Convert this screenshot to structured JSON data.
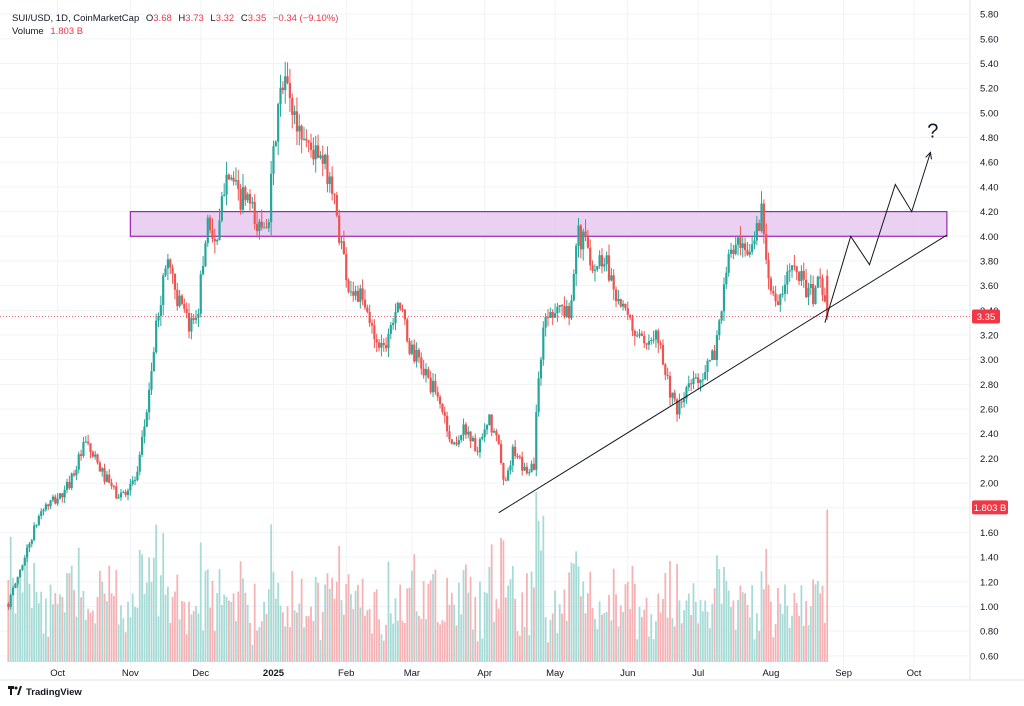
{
  "legend": {
    "symbol": "SUI/USD, 1D, CoinMarketCap",
    "o_label": "O",
    "o_value": "3.68",
    "h_label": "H",
    "h_value": "3.73",
    "l_label": "L",
    "l_value": "3.32",
    "c_label": "C",
    "c_value": "3.35",
    "change": "−0.34 (−9.10%)",
    "volume_label": "Volume",
    "volume_value": "1.803 B"
  },
  "brand": {
    "name": "TradingView",
    "logo_icon": "tradingview-logo-icon"
  },
  "colors": {
    "up": "#26a69a",
    "down": "#ef5350",
    "volume_up": "#a7dbd6",
    "volume_down": "#f6b3b6",
    "zone_fill": "#e6c8ef",
    "zone_stroke": "#9c27b0",
    "price_tag": "#f23645"
  },
  "chart_data": {
    "type": "candlestick",
    "symbol": "SUI/USD",
    "interval": "1D",
    "source": "CoinMarketCap",
    "y_ticks": [
      "5.80",
      "5.60",
      "5.40",
      "5.20",
      "5.00",
      "4.80",
      "4.60",
      "4.40",
      "4.20",
      "4.00",
      "3.80",
      "3.60",
      "3.40",
      "3.20",
      "3.00",
      "2.80",
      "2.60",
      "2.40",
      "2.20",
      "2.00",
      "1.80",
      "1.60",
      "1.40",
      "1.20",
      "1.00",
      "0.80",
      "0.60"
    ],
    "ylim": [
      0.55,
      5.85
    ],
    "x_ticks": [
      {
        "label": "Oct",
        "date": "2024-10-01",
        "bold": false
      },
      {
        "label": "Nov",
        "date": "2024-11-01",
        "bold": false
      },
      {
        "label": "Dec",
        "date": "2024-12-01",
        "bold": false
      },
      {
        "label": "2025",
        "date": "2025-01-01",
        "bold": true
      },
      {
        "label": "Feb",
        "date": "2025-02-01",
        "bold": false
      },
      {
        "label": "Mar",
        "date": "2025-03-01",
        "bold": false
      },
      {
        "label": "Apr",
        "date": "2025-04-01",
        "bold": false
      },
      {
        "label": "May",
        "date": "2025-05-01",
        "bold": false
      },
      {
        "label": "Jun",
        "date": "2025-06-01",
        "bold": false
      },
      {
        "label": "Jul",
        "date": "2025-07-01",
        "bold": false
      },
      {
        "label": "Aug",
        "date": "2025-08-01",
        "bold": false
      },
      {
        "label": "Sep",
        "date": "2025-09-01",
        "bold": false
      },
      {
        "label": "Oct",
        "date": "2025-10-01",
        "bold": false
      }
    ],
    "xlim": [
      "2024-09-09",
      "2025-10-24"
    ],
    "last_price": {
      "value": 3.35,
      "label": "3.35"
    },
    "last_volume": {
      "value": 1.803,
      "label": "1.803 B"
    },
    "anchors": [
      [
        "2024-09-10",
        1.02
      ],
      [
        "2024-09-16",
        1.35
      ],
      [
        "2024-09-24",
        1.78
      ],
      [
        "2024-10-04",
        1.92
      ],
      [
        "2024-10-13",
        2.32
      ],
      [
        "2024-10-20",
        2.08
      ],
      [
        "2024-10-27",
        1.88
      ],
      [
        "2024-11-04",
        2.05
      ],
      [
        "2024-11-08",
        2.6
      ],
      [
        "2024-11-13",
        3.4
      ],
      [
        "2024-11-17",
        3.85
      ],
      [
        "2024-11-21",
        3.5
      ],
      [
        "2024-11-26",
        3.25
      ],
      [
        "2024-11-30",
        3.45
      ],
      [
        "2024-12-04",
        4.15
      ],
      [
        "2024-12-08",
        3.9
      ],
      [
        "2024-12-12",
        4.6
      ],
      [
        "2024-12-17",
        4.3
      ],
      [
        "2024-12-21",
        4.3
      ],
      [
        "2024-12-25",
        4.05
      ],
      [
        "2024-12-30",
        4.2
      ],
      [
        "2025-01-03",
        5.05
      ],
      [
        "2025-01-06",
        5.25
      ],
      [
        "2025-01-11",
        4.9
      ],
      [
        "2025-01-16",
        4.75
      ],
      [
        "2025-01-21",
        4.6
      ],
      [
        "2025-01-25",
        4.5
      ],
      [
        "2025-01-28",
        4.15
      ],
      [
        "2025-02-02",
        3.6
      ],
      [
        "2025-02-07",
        3.5
      ],
      [
        "2025-02-13",
        3.2
      ],
      [
        "2025-02-17",
        3.1
      ],
      [
        "2025-02-23",
        3.5
      ],
      [
        "2025-02-28",
        3.1
      ],
      [
        "2025-03-05",
        2.95
      ],
      [
        "2025-03-09",
        2.8
      ],
      [
        "2025-03-14",
        2.6
      ],
      [
        "2025-03-18",
        2.3
      ],
      [
        "2025-03-24",
        2.45
      ],
      [
        "2025-03-29",
        2.25
      ],
      [
        "2025-04-03",
        2.5
      ],
      [
        "2025-04-07",
        2.3
      ],
      [
        "2025-04-09",
        2.0
      ],
      [
        "2025-04-13",
        2.25
      ],
      [
        "2025-04-18",
        2.1
      ],
      [
        "2025-04-22",
        2.15
      ],
      [
        "2025-04-24",
        2.9
      ],
      [
        "2025-04-27",
        3.35
      ],
      [
        "2025-05-02",
        3.45
      ],
      [
        "2025-05-07",
        3.35
      ],
      [
        "2025-05-10",
        4.0
      ],
      [
        "2025-05-14",
        3.95
      ],
      [
        "2025-05-18",
        3.75
      ],
      [
        "2025-05-22",
        3.85
      ],
      [
        "2025-05-26",
        3.6
      ],
      [
        "2025-05-31",
        3.35
      ],
      [
        "2025-06-05",
        3.2
      ],
      [
        "2025-06-09",
        3.05
      ],
      [
        "2025-06-13",
        3.3
      ],
      [
        "2025-06-17",
        2.9
      ],
      [
        "2025-06-22",
        2.55
      ],
      [
        "2025-06-26",
        2.75
      ],
      [
        "2025-06-30",
        2.85
      ],
      [
        "2025-07-04",
        2.9
      ],
      [
        "2025-07-08",
        3.05
      ],
      [
        "2025-07-11",
        3.45
      ],
      [
        "2025-07-15",
        3.9
      ],
      [
        "2025-07-18",
        3.9
      ],
      [
        "2025-07-22",
        3.8
      ],
      [
        "2025-07-25",
        4.0
      ],
      [
        "2025-07-28",
        4.2
      ],
      [
        "2025-08-01",
        3.6
      ],
      [
        "2025-08-04",
        3.4
      ],
      [
        "2025-08-07",
        3.6
      ],
      [
        "2025-08-11",
        3.85
      ],
      [
        "2025-08-14",
        3.65
      ],
      [
        "2025-08-19",
        3.5
      ],
      [
        "2025-08-22",
        3.7
      ],
      [
        "2025-08-25",
        3.35
      ]
    ],
    "annotations": {
      "resistance_zone": {
        "y_low": 4.0,
        "y_high": 4.2,
        "x_start": "2024-11-01",
        "x_end": "2025-10-15"
      },
      "ascending_trendline": {
        "start": [
          "2025-04-07",
          1.76
        ],
        "end": [
          "2025-10-15",
          4.01
        ]
      },
      "projected_path": [
        [
          "2025-08-24",
          3.3
        ],
        [
          "2025-09-04",
          4.0
        ],
        [
          "2025-09-12",
          3.77
        ],
        [
          "2025-09-23",
          4.42
        ],
        [
          "2025-09-30",
          4.2
        ],
        [
          "2025-10-08",
          4.68
        ]
      ],
      "question_mark": {
        "text": "?",
        "x": "2025-10-09",
        "y": 4.8
      }
    }
  }
}
